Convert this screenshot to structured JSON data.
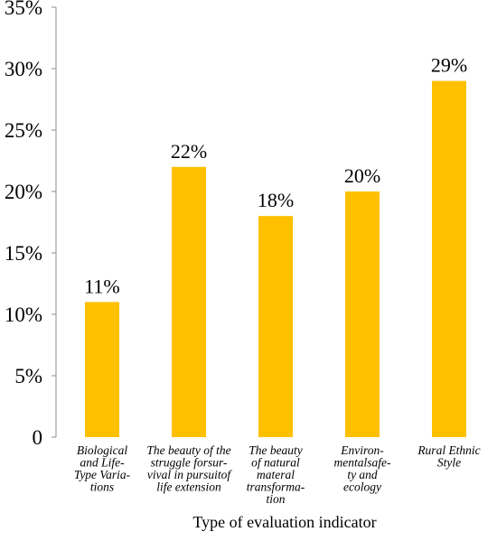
{
  "chart_data": {
    "type": "bar",
    "categories": [
      [
        "Biological",
        "and Life-",
        "Type Varia-",
        "tions"
      ],
      [
        "The beauty of the",
        "struggle forsur-",
        "vival in pursuitof",
        "life extension"
      ],
      [
        "The beauty",
        "of natural",
        "materal",
        "transforma-",
        "tion"
      ],
      [
        "Environ-",
        "mentalsafe-",
        "ty and",
        "ecology"
      ],
      [
        "Rural Ethnic",
        "Style"
      ]
    ],
    "values": [
      11,
      22,
      18,
      20,
      29
    ],
    "data_labels": [
      "11%",
      "22%",
      "18%",
      "20%",
      "29%"
    ],
    "y_ticks": [
      0,
      5,
      10,
      15,
      20,
      25,
      30,
      35
    ],
    "y_tick_labels": [
      "0",
      "5%",
      "10%",
      "15%",
      "20%",
      "25%",
      "30%",
      "35%"
    ],
    "ylim": [
      0,
      35
    ],
    "xlabel": "Type of evaluation indicator",
    "ylabel": "",
    "title": "",
    "bar_color": "#FFC000",
    "grid": false,
    "legend": "none"
  }
}
